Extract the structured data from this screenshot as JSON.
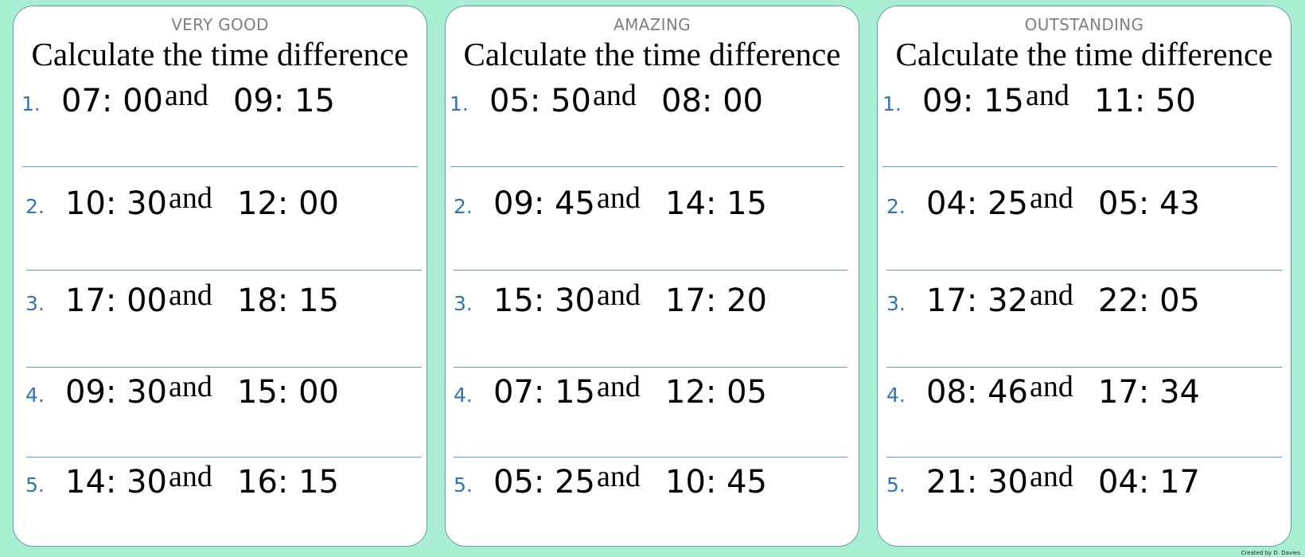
{
  "worksheets": [
    {
      "level": "VERY GOOD",
      "heading": "Calculate the time difference",
      "questions": [
        {
          "number": "1.",
          "from": "07: 00",
          "conjunction": "and",
          "to": "09: 15"
        },
        {
          "number": "2.",
          "from": "10: 30",
          "conjunction": "and",
          "to": "12: 00"
        },
        {
          "number": "3.",
          "from": "17: 00",
          "conjunction": "and",
          "to": "18: 15"
        },
        {
          "number": "4.",
          "from": "09: 30",
          "conjunction": "and",
          "to": "15: 00"
        },
        {
          "number": "5.",
          "from": "14: 30",
          "conjunction": "and",
          "to": "16: 15"
        }
      ]
    },
    {
      "level": "AMAZING",
      "heading": "Calculate the time difference",
      "questions": [
        {
          "number": "1.",
          "from": "05: 50",
          "conjunction": "and",
          "to": "08: 00"
        },
        {
          "number": "2.",
          "from": "09: 45",
          "conjunction": "and",
          "to": "14: 15"
        },
        {
          "number": "3.",
          "from": "15: 30",
          "conjunction": "and",
          "to": "17: 20"
        },
        {
          "number": "4.",
          "from": "07: 15",
          "conjunction": "and",
          "to": "12: 05"
        },
        {
          "number": "5.",
          "from": "05: 25",
          "conjunction": "and",
          "to": "10: 45"
        }
      ]
    },
    {
      "level": "OUTSTANDING",
      "heading": "Calculate the time difference",
      "questions": [
        {
          "number": "1.",
          "from": "09: 15",
          "conjunction": "and",
          "to": "11: 50"
        },
        {
          "number": "2.",
          "from": "04: 25",
          "conjunction": "and",
          "to": "05: 43"
        },
        {
          "number": "3.",
          "from": "17: 32",
          "conjunction": "and",
          "to": "22: 05"
        },
        {
          "number": "4.",
          "from": "08: 46",
          "conjunction": "and",
          "to": "17: 34"
        },
        {
          "number": "5.",
          "from": "21: 30",
          "conjunction": "and",
          "to": "04: 17"
        }
      ]
    }
  ],
  "credit": "Created by D. Davies",
  "colors": {
    "background": "#a8eed2",
    "card": "#ffffff",
    "card_border": "#6a9ab2",
    "number": "#2e75b6",
    "rule": "#5b9bd5",
    "level_text": "#7f7f7f"
  }
}
